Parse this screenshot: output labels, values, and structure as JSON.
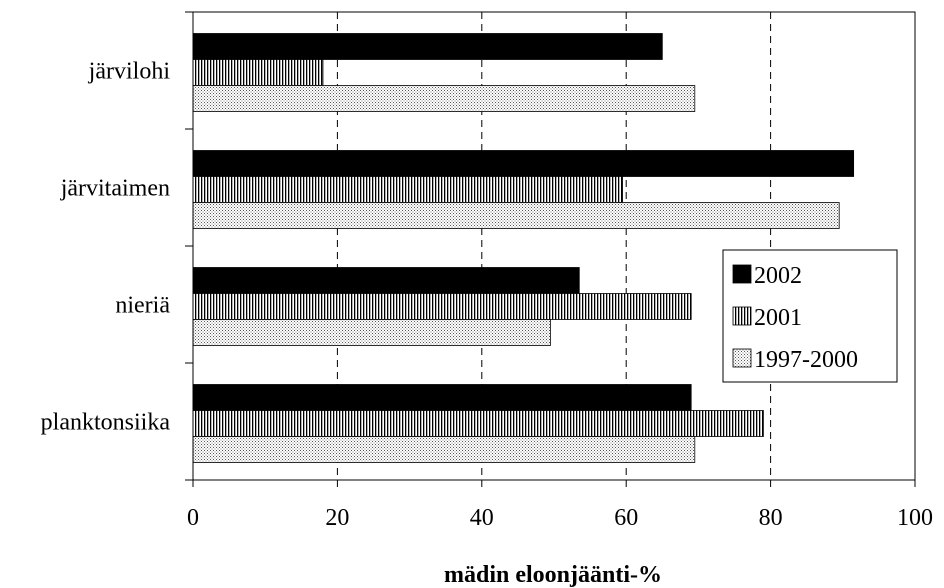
{
  "chart_data": {
    "type": "bar",
    "orientation": "horizontal",
    "categories": [
      "järvilohi",
      "järvitaimen",
      "nieriä",
      "planktonsiika"
    ],
    "series": [
      {
        "name": "2002",
        "values": [
          65,
          91.5,
          53.5,
          69
        ],
        "pattern": "solid-black"
      },
      {
        "name": "2001",
        "values": [
          18,
          59.5,
          69,
          79
        ],
        "pattern": "vertical-stripes"
      },
      {
        "name": "1997-2000",
        "values": [
          69.5,
          89.5,
          49.5,
          69.5
        ],
        "pattern": "dotted"
      }
    ],
    "xlabel": "mädin eloonjäänti-%",
    "xlim": [
      0,
      100
    ],
    "xticks": [
      0,
      20,
      40,
      60,
      80,
      100
    ],
    "grid": "vertical-dashed",
    "legend": "right-middle"
  }
}
